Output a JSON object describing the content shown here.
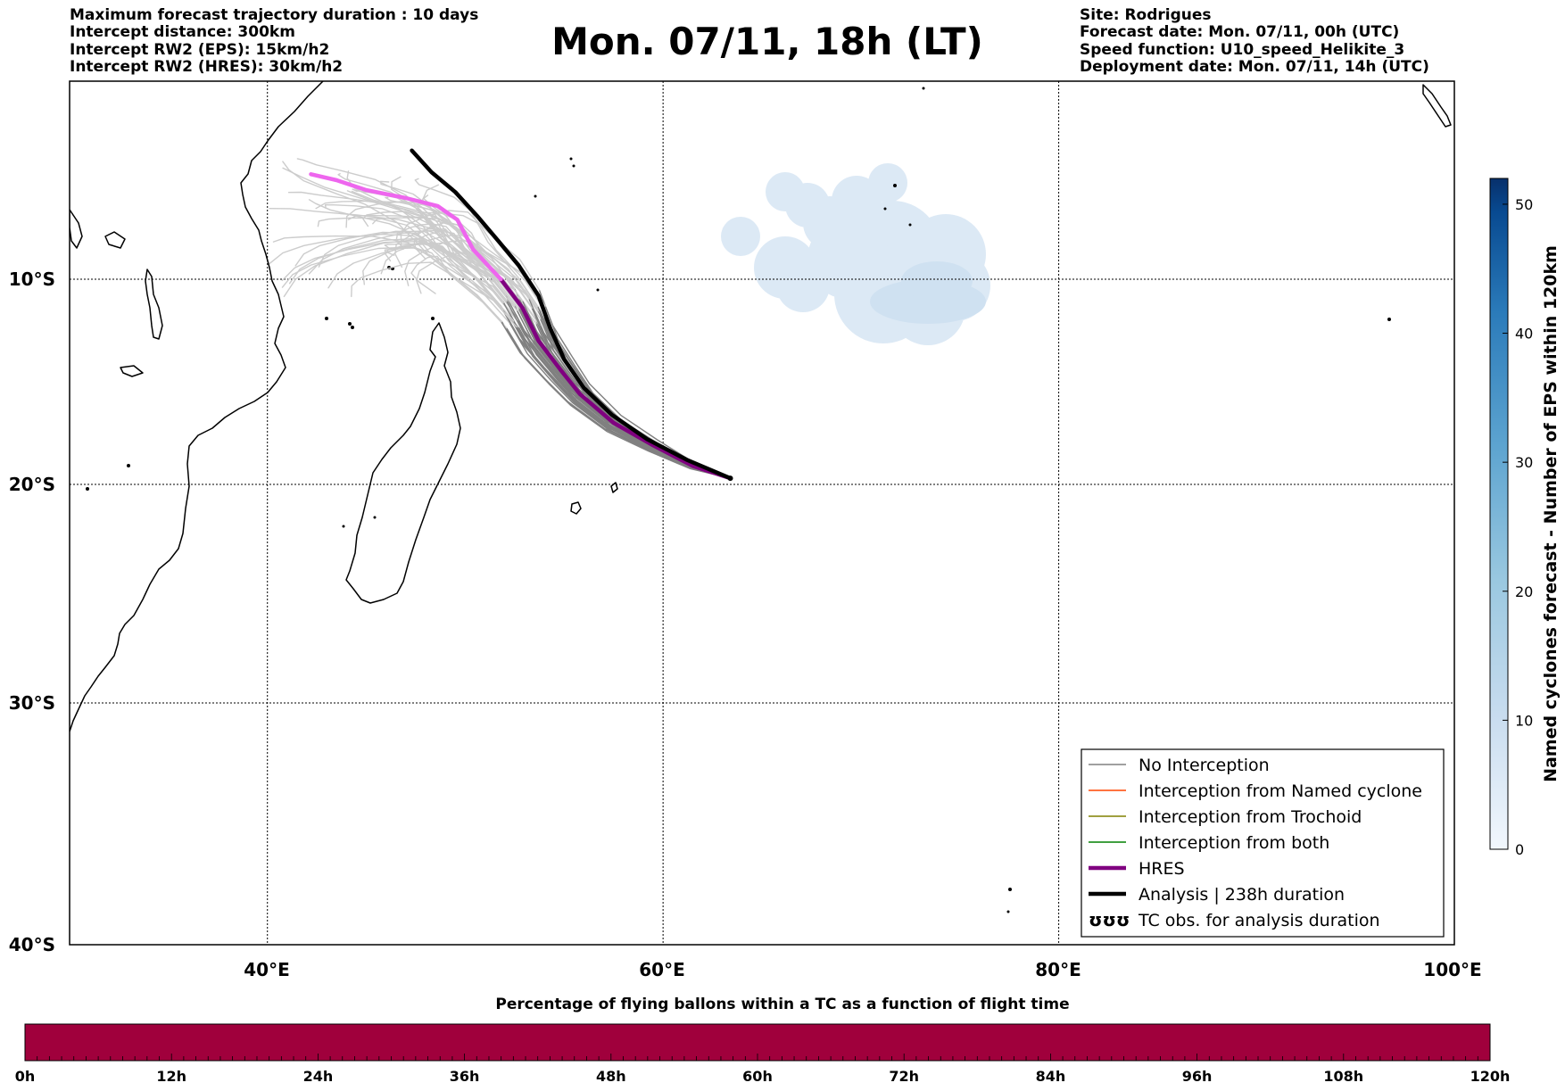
{
  "header": {
    "left_lines": [
      "Maximum forecast trajectory duration : 10 days",
      "Intercept distance: 300km",
      "Intercept RW2 (EPS):  15km/h2",
      "Intercept RW2 (HRES): 30km/h2"
    ],
    "title": "Mon. 07/11, 18h (LT)",
    "right_lines": [
      "Site: Rodrigues",
      "Forecast date: Mon. 07/11, 00h (UTC)",
      "Speed function: U10_speed_Helikite_3",
      "Deployment date: Mon. 07/11, 14h (UTC)"
    ]
  },
  "map": {
    "lon_range": [
      30,
      100
    ],
    "lat_range": [
      -40,
      0
    ],
    "lon_gridlines": [
      40,
      60,
      80
    ],
    "lat_gridlines": [
      -10,
      -20,
      -30
    ],
    "x_tick_labels": [
      "40°E",
      "60°E",
      "80°E",
      "100°E"
    ],
    "y_tick_labels": [
      "10°S",
      "20°S",
      "30°S",
      "40°S"
    ],
    "launch_site": {
      "lon": 63.4,
      "lat": -19.7
    },
    "hres_track": [
      [
        63.4,
        -19.7
      ],
      [
        61.5,
        -19.1
      ],
      [
        59.5,
        -18.1
      ],
      [
        57.5,
        -17.0
      ],
      [
        55.8,
        -15.6
      ],
      [
        54.8,
        -14.4
      ],
      [
        53.7,
        -13.0
      ],
      [
        52.9,
        -11.4
      ],
      [
        51.8,
        -10.0
      ],
      [
        50.4,
        -8.5
      ],
      [
        49.6,
        -7.0
      ],
      [
        48.6,
        -6.3
      ],
      [
        47.0,
        -5.9
      ],
      [
        45.0,
        -5.5
      ],
      [
        43.5,
        -5.0
      ],
      [
        42.2,
        -4.7
      ]
    ],
    "analysis_track": [
      [
        63.4,
        -19.7
      ],
      [
        61.2,
        -18.8
      ],
      [
        59.2,
        -17.8
      ],
      [
        57.4,
        -16.6
      ],
      [
        56.0,
        -15.3
      ],
      [
        55.0,
        -13.9
      ],
      [
        54.3,
        -12.4
      ],
      [
        53.7,
        -10.8
      ],
      [
        52.7,
        -9.3
      ],
      [
        51.7,
        -8.1
      ],
      [
        50.6,
        -6.8
      ],
      [
        49.5,
        -5.6
      ],
      [
        48.3,
        -4.6
      ],
      [
        47.3,
        -3.5
      ]
    ],
    "colors": {
      "no_interception": "#808080",
      "named_cyclone": "#ff4500",
      "trochoid": "#808000",
      "both": "#008000",
      "hres": "#800080",
      "hres_late": "#ee66ee",
      "analysis": "#000000",
      "cyclone_density": "#dce9f5"
    }
  },
  "legend": {
    "items": [
      {
        "label": "No Interception",
        "color": "#808080",
        "style": "thin"
      },
      {
        "label": "Interception from Named cyclone",
        "color": "#ff4500",
        "style": "thin"
      },
      {
        "label": "Interception from Trochoid",
        "color": "#808000",
        "style": "thin"
      },
      {
        "label": "Interception from both",
        "color": "#008000",
        "style": "thin"
      },
      {
        "label": "HRES",
        "color": "#800080",
        "style": "thick"
      },
      {
        "label": "Analysis | 238h duration",
        "color": "#000000",
        "style": "thick"
      },
      {
        "label": "TC obs. for analysis duration",
        "color": "#000000",
        "style": "symbol",
        "symbol": "ʊʊʊ"
      }
    ]
  },
  "colorbar_right": {
    "label": "Named cyclones forecast - Number of EPS within 120km",
    "range": [
      0,
      52
    ],
    "ticks": [
      "0",
      "10",
      "20",
      "30",
      "40",
      "50"
    ],
    "tick_values": [
      0,
      10,
      20,
      30,
      40,
      50
    ],
    "colors": [
      "#f2f7fd",
      "#c8dcef",
      "#9ac8e0",
      "#5da4d0",
      "#2b7bba",
      "#084a91",
      "#08306b"
    ]
  },
  "colorbar_bottom": {
    "title": "Percentage of flying ballons within a TC as a function of flight time",
    "ticks": [
      "0h",
      "12h",
      "24h",
      "36h",
      "48h",
      "60h",
      "72h",
      "84h",
      "96h",
      "108h",
      "120h"
    ],
    "tick_values": [
      0,
      12,
      24,
      36,
      48,
      60,
      72,
      84,
      96,
      108,
      120
    ],
    "fill_color": "#a0003c"
  }
}
